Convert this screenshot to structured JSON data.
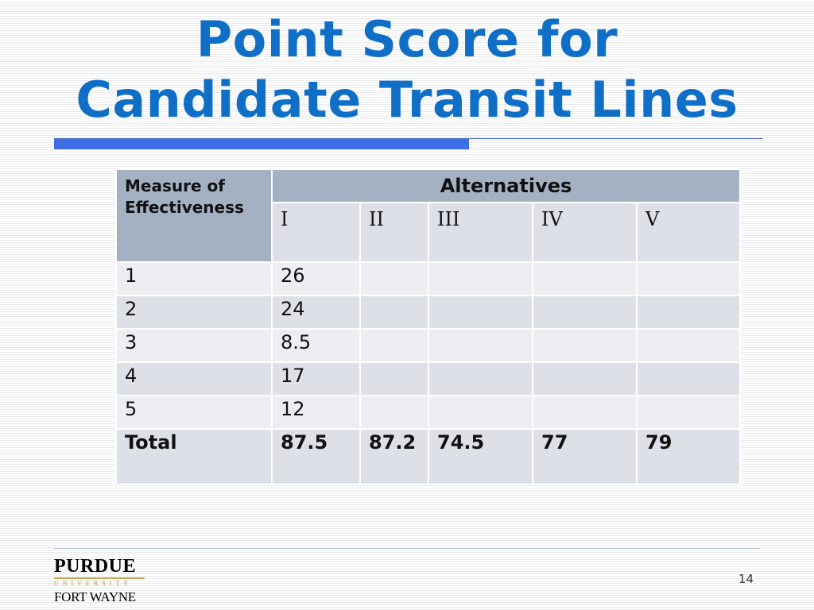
{
  "slide": {
    "title_line1": "Point Score for",
    "title_line2": "Candidate Transit Lines",
    "slide_number": "14"
  },
  "table": {
    "measure_header": "Measure of Effectiveness",
    "alternatives_header": "Alternatives",
    "alternatives": [
      "I",
      "II",
      "III",
      "IV",
      "V"
    ],
    "rows": [
      {
        "measure": "1",
        "values": [
          "26",
          "",
          "",
          "",
          ""
        ]
      },
      {
        "measure": "2",
        "values": [
          "24",
          "",
          "",
          "",
          ""
        ]
      },
      {
        "measure": "3",
        "values": [
          "8.5",
          "",
          "",
          "",
          ""
        ]
      },
      {
        "measure": "4",
        "values": [
          "17",
          "",
          "",
          "",
          ""
        ]
      },
      {
        "measure": "5",
        "values": [
          "12",
          "",
          "",
          "",
          ""
        ]
      }
    ],
    "total": {
      "label": "Total",
      "values": [
        "87.5",
        "87.2",
        "74.5",
        "77",
        "79"
      ]
    }
  },
  "logo": {
    "purdue": "PURDUE",
    "university": "UNIVERSITY",
    "campus": "FORT WAYNE"
  },
  "colors": {
    "title": "#0f6fc6",
    "accent_bar": "#3f6ee4",
    "header_fill": "#a3b1c3",
    "row_light": "#eceef1",
    "row_dark": "#dde1e7"
  }
}
